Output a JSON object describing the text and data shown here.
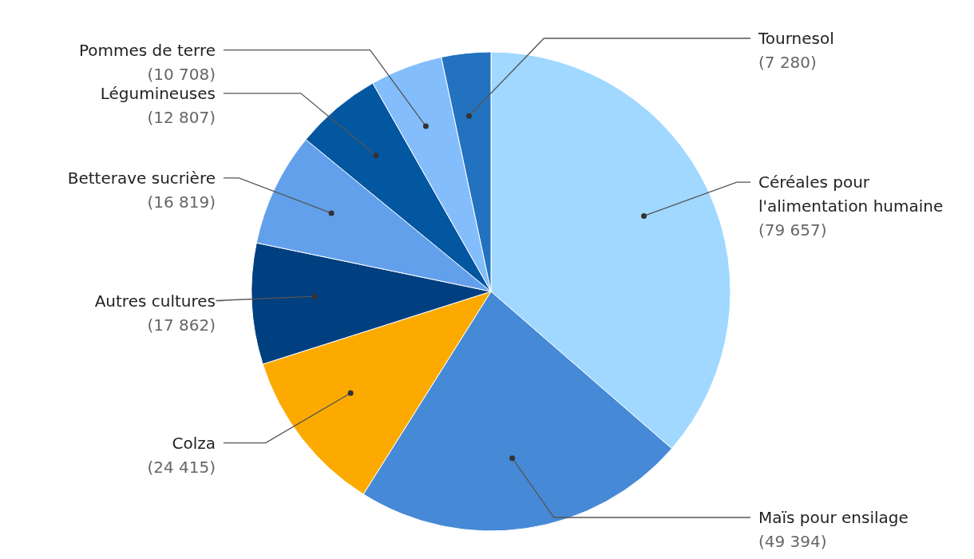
{
  "chart_data": {
    "type": "pie",
    "categories": [
      "Céréales pour l'alimentation humaine",
      "Maïs pour ensilage",
      "Colza",
      "Autres cultures",
      "Betterave sucrière",
      "Légumineuses",
      "Pommes de terre",
      "Tournesol"
    ],
    "values": [
      79657,
      49394,
      24415,
      17862,
      16819,
      12807,
      10708,
      7280
    ],
    "value_labels": [
      "(79 657)",
      "(49 394)",
      "(24 415)",
      "(17 862)",
      "(16 819)",
      "(12 807)",
      "(10 708)",
      "(7 280)"
    ],
    "colors": [
      "#a0d8ff",
      "#4689d6",
      "#fcaa00",
      "#003f80",
      "#62a0ec",
      "#0356a0",
      "#83bdfc",
      "#2272c0"
    ],
    "legend": false
  }
}
